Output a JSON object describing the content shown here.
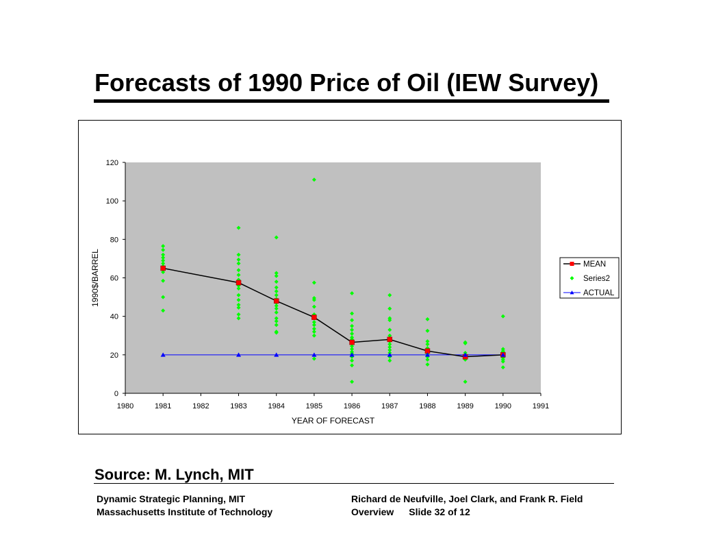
{
  "slide": {
    "title": "Forecasts of 1990 Price of Oil (IEW Survey)",
    "source": "Source: M. Lynch, MIT"
  },
  "footer": {
    "left_line1": "Dynamic Strategic Planning, MIT",
    "left_line2": "Massachusetts Institute of Technology",
    "right_line1": "Richard de Neufville, Joel Clark, and Frank  R. Field",
    "right_line2_a": "Overview",
    "right_line2_b": "Slide 32 of 12"
  },
  "colors": {
    "plot_bg": "#c0c0c0",
    "mean_line": "#000000",
    "mean_marker": "#ff0000",
    "series2": "#00ff00",
    "actual": "#0000ff"
  },
  "chart_data": {
    "type": "scatter",
    "xlabel": "YEAR OF FORECAST",
    "ylabel": "1990$/BARREL",
    "xlim": [
      1980,
      1991
    ],
    "ylim": [
      0,
      120
    ],
    "x_ticks": [
      1980,
      1981,
      1982,
      1983,
      1984,
      1985,
      1986,
      1987,
      1988,
      1989,
      1990,
      1991
    ],
    "y_ticks": [
      0,
      20,
      40,
      60,
      80,
      100,
      120
    ],
    "grid": false,
    "legend_position": "right",
    "series": [
      {
        "name": "MEAN",
        "kind": "line-with-square-markers",
        "x": [
          1981,
          1983,
          1984,
          1985,
          1986,
          1987,
          1988,
          1989,
          1990
        ],
        "y": [
          65,
          57.5,
          48,
          39.5,
          26.5,
          28,
          22,
          19,
          20
        ]
      },
      {
        "name": "Series2",
        "kind": "diamond-markers",
        "points": [
          [
            1981,
            76.5
          ],
          [
            1981,
            74.5
          ],
          [
            1981,
            72
          ],
          [
            1981,
            70.5
          ],
          [
            1981,
            69
          ],
          [
            1981,
            67.5
          ],
          [
            1981,
            66
          ],
          [
            1981,
            63
          ],
          [
            1981,
            58.5
          ],
          [
            1981,
            50
          ],
          [
            1981,
            43
          ],
          [
            1983,
            86
          ],
          [
            1983,
            72
          ],
          [
            1983,
            69.5
          ],
          [
            1983,
            67.5
          ],
          [
            1983,
            64
          ],
          [
            1983,
            61.5
          ],
          [
            1983,
            59
          ],
          [
            1983,
            56
          ],
          [
            1983,
            54.5
          ],
          [
            1983,
            51
          ],
          [
            1983,
            48.5
          ],
          [
            1983,
            46
          ],
          [
            1983,
            44.5
          ],
          [
            1983,
            41
          ],
          [
            1983,
            39
          ],
          [
            1984,
            81
          ],
          [
            1984,
            62.5
          ],
          [
            1984,
            61
          ],
          [
            1984,
            58
          ],
          [
            1984,
            55
          ],
          [
            1984,
            53
          ],
          [
            1984,
            51
          ],
          [
            1984,
            49
          ],
          [
            1984,
            47
          ],
          [
            1984,
            45.5
          ],
          [
            1984,
            44
          ],
          [
            1984,
            42
          ],
          [
            1984,
            39
          ],
          [
            1984,
            37.5
          ],
          [
            1984,
            35.5
          ],
          [
            1984,
            32
          ],
          [
            1984,
            31.5
          ],
          [
            1985,
            111
          ],
          [
            1985,
            57.5
          ],
          [
            1985,
            49.5
          ],
          [
            1985,
            48.5
          ],
          [
            1985,
            45
          ],
          [
            1985,
            41
          ],
          [
            1985,
            39
          ],
          [
            1985,
            37
          ],
          [
            1985,
            35.5
          ],
          [
            1985,
            33.5
          ],
          [
            1985,
            32
          ],
          [
            1985,
            30
          ],
          [
            1985,
            18
          ],
          [
            1986,
            52
          ],
          [
            1986,
            41.5
          ],
          [
            1986,
            38
          ],
          [
            1986,
            35
          ],
          [
            1986,
            33
          ],
          [
            1986,
            31
          ],
          [
            1986,
            29
          ],
          [
            1986,
            28
          ],
          [
            1986,
            27
          ],
          [
            1986,
            26
          ],
          [
            1986,
            24.5
          ],
          [
            1986,
            23
          ],
          [
            1986,
            21.5
          ],
          [
            1986,
            20.5
          ],
          [
            1986,
            19
          ],
          [
            1986,
            17
          ],
          [
            1986,
            14.5
          ],
          [
            1986,
            6
          ],
          [
            1987,
            51
          ],
          [
            1987,
            44
          ],
          [
            1987,
            39
          ],
          [
            1987,
            38
          ],
          [
            1987,
            33
          ],
          [
            1987,
            30
          ],
          [
            1987,
            28.5
          ],
          [
            1987,
            27
          ],
          [
            1987,
            25.5
          ],
          [
            1987,
            24
          ],
          [
            1987,
            22.5
          ],
          [
            1987,
            21
          ],
          [
            1987,
            19
          ],
          [
            1987,
            17
          ],
          [
            1988,
            38.5
          ],
          [
            1988,
            32.5
          ],
          [
            1988,
            27
          ],
          [
            1988,
            25.5
          ],
          [
            1988,
            23.5
          ],
          [
            1988,
            22
          ],
          [
            1988,
            20.5
          ],
          [
            1988,
            19
          ],
          [
            1988,
            17.5
          ],
          [
            1988,
            15
          ],
          [
            1989,
            26.5
          ],
          [
            1989,
            26
          ],
          [
            1989,
            21
          ],
          [
            1989,
            20
          ],
          [
            1989,
            19
          ],
          [
            1989,
            18.5
          ],
          [
            1989,
            17.5
          ],
          [
            1989,
            6
          ],
          [
            1990,
            40
          ],
          [
            1990,
            23
          ],
          [
            1990,
            22
          ],
          [
            1990,
            21.5
          ],
          [
            1990,
            20.5
          ],
          [
            1990,
            19.5
          ],
          [
            1990,
            18.5
          ],
          [
            1990,
            17.5
          ],
          [
            1990,
            16.5
          ],
          [
            1990,
            13.5
          ]
        ]
      },
      {
        "name": "ACTUAL",
        "kind": "line-with-triangle-markers",
        "x": [
          1981,
          1983,
          1984,
          1985,
          1986,
          1987,
          1988,
          1989,
          1990
        ],
        "y": [
          20,
          20,
          20,
          20,
          20,
          20,
          20,
          20,
          20
        ]
      }
    ]
  }
}
